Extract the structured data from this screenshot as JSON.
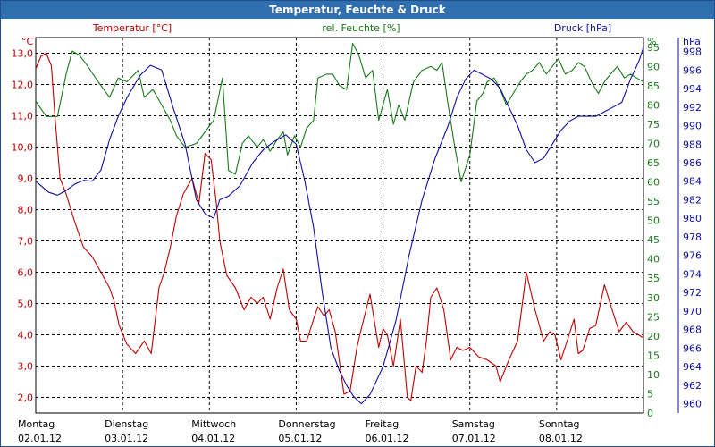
{
  "window": {
    "title": "Temperatur, Feuchte & Druck"
  },
  "colors": {
    "temp": "#c00000",
    "hum": "#1a7a1a",
    "press": "#1010a0",
    "title_bg": "#2f6fb0"
  },
  "chart_data": {
    "type": "line",
    "title": "Temperatur, Feuchte & Druck",
    "x_categories": [
      {
        "day": "Montag",
        "date": "02.01.12"
      },
      {
        "day": "Dienstag",
        "date": "03.01.12"
      },
      {
        "day": "Mittwoch",
        "date": "04.01.12"
      },
      {
        "day": "Donnerstag",
        "date": "05.01.12"
      },
      {
        "day": "Freitag",
        "date": "06.01.12"
      },
      {
        "day": "Samstag",
        "date": "07.01.12"
      },
      {
        "day": "Sonntag",
        "date": "08.01.12"
      }
    ],
    "x_range": [
      0,
      7
    ],
    "grid": true,
    "axes": {
      "temp": {
        "label": "Temperatur [°C]",
        "unit": "°C",
        "min": 1.5,
        "max": 13.5,
        "ticks": [
          "2,0",
          "3,0",
          "4,0",
          "5,0",
          "6,0",
          "7,0",
          "8,0",
          "9,0",
          "10,0",
          "11,0",
          "12,0",
          "13,0"
        ],
        "tick_values": [
          2,
          3,
          4,
          5,
          6,
          7,
          8,
          9,
          10,
          11,
          12,
          13
        ]
      },
      "hum": {
        "label": "rel. Feuchte [%]",
        "unit": "%",
        "min": 0,
        "max": 97.5,
        "ticks": [
          "0",
          "5",
          "10",
          "15",
          "20",
          "25",
          "30",
          "35",
          "40",
          "45",
          "50",
          "55",
          "60",
          "65",
          "70",
          "75",
          "80",
          "85",
          "90",
          "95"
        ],
        "tick_values": [
          0,
          5,
          10,
          15,
          20,
          25,
          30,
          35,
          40,
          45,
          50,
          55,
          60,
          65,
          70,
          75,
          80,
          85,
          90,
          95
        ]
      },
      "press": {
        "label": "Druck [hPa]",
        "unit": "hPa",
        "min": 959,
        "max": 999.5,
        "ticks": [
          "960",
          "962",
          "964",
          "966",
          "968",
          "970",
          "972",
          "974",
          "976",
          "978",
          "980",
          "982",
          "984",
          "986",
          "988",
          "990",
          "992",
          "994",
          "996",
          "998"
        ],
        "tick_values": [
          960,
          962,
          964,
          966,
          968,
          970,
          972,
          974,
          976,
          978,
          980,
          982,
          984,
          986,
          988,
          990,
          992,
          994,
          996,
          998
        ]
      }
    },
    "series": [
      {
        "name": "Temperatur [°C]",
        "axis": "temp",
        "color": "#c00000",
        "x": [
          0,
          0.06,
          0.12,
          0.18,
          0.22,
          0.28,
          0.35,
          0.45,
          0.55,
          0.65,
          0.75,
          0.85,
          0.9,
          0.96,
          1.05,
          1.15,
          1.25,
          1.33,
          1.42,
          1.48,
          1.55,
          1.62,
          1.7,
          1.8,
          1.88,
          1.95,
          2.02,
          2.08,
          2.12,
          2.2,
          2.3,
          2.4,
          2.48,
          2.55,
          2.62,
          2.7,
          2.78,
          2.85,
          2.92,
          3.0,
          3.05,
          3.12,
          3.2,
          3.25,
          3.32,
          3.38,
          3.45,
          3.55,
          3.62,
          3.7,
          3.75,
          3.85,
          3.95,
          4.0,
          4.05,
          4.12,
          4.2,
          4.28,
          4.32,
          4.38,
          4.45,
          4.5,
          4.55,
          4.62,
          4.7,
          4.78,
          4.85,
          4.92,
          5.0,
          5.1,
          5.2,
          5.3,
          5.35,
          5.45,
          5.55,
          5.65,
          5.75,
          5.85,
          5.92,
          5.98,
          6.05,
          6.12,
          6.2,
          6.25,
          6.3,
          6.38,
          6.45,
          6.55,
          6.65,
          6.72,
          6.8,
          6.88,
          6.94,
          7.0
        ],
        "values": [
          12.5,
          12.9,
          13.0,
          12.6,
          11.0,
          9.0,
          8.5,
          7.6,
          6.8,
          6.5,
          6.0,
          5.5,
          5.1,
          4.3,
          3.7,
          3.4,
          3.8,
          3.4,
          5.5,
          6.0,
          6.8,
          7.8,
          8.5,
          9.0,
          8.2,
          9.8,
          9.6,
          8.2,
          7.0,
          5.9,
          5.5,
          4.8,
          5.2,
          5.0,
          5.2,
          4.5,
          5.5,
          6.1,
          4.8,
          4.5,
          3.8,
          3.8,
          4.5,
          4.9,
          4.6,
          4.8,
          4.1,
          2.1,
          2.2,
          3.6,
          4.2,
          5.3,
          3.6,
          4.2,
          4.0,
          3.0,
          4.5,
          2.0,
          1.9,
          3.0,
          2.8,
          3.8,
          5.2,
          5.5,
          4.8,
          3.2,
          3.6,
          3.5,
          3.6,
          3.3,
          3.2,
          3.0,
          2.5,
          3.2,
          3.8,
          6.0,
          4.8,
          3.8,
          4.1,
          4.0,
          3.2,
          3.8,
          4.5,
          3.4,
          3.5,
          4.2,
          4.3,
          5.6,
          4.7,
          4.1,
          4.4,
          4.1,
          4.0,
          3.9
        ]
      },
      {
        "name": "rel. Feuchte [%]",
        "axis": "hum",
        "color": "#1a7a1a",
        "x": [
          0,
          0.12,
          0.25,
          0.35,
          0.42,
          0.5,
          0.6,
          0.72,
          0.85,
          0.95,
          1.05,
          1.18,
          1.25,
          1.35,
          1.45,
          1.55,
          1.62,
          1.72,
          1.85,
          1.95,
          2.05,
          2.15,
          2.22,
          2.3,
          2.38,
          2.45,
          2.55,
          2.62,
          2.7,
          2.78,
          2.85,
          2.9,
          2.98,
          3.05,
          3.12,
          3.2,
          3.25,
          3.35,
          3.42,
          3.5,
          3.58,
          3.65,
          3.72,
          3.8,
          3.88,
          3.95,
          4.05,
          4.12,
          4.18,
          4.25,
          4.35,
          4.45,
          4.55,
          4.62,
          4.68,
          4.75,
          4.82,
          4.9,
          5.0,
          5.08,
          5.15,
          5.2,
          5.28,
          5.35,
          5.42,
          5.5,
          5.58,
          5.65,
          5.72,
          5.8,
          5.88,
          5.95,
          6.02,
          6.1,
          6.18,
          6.25,
          6.32,
          6.4,
          6.48,
          6.55,
          6.62,
          6.7,
          6.78,
          6.85,
          6.92,
          7.0
        ],
        "values": [
          81,
          77,
          77,
          88,
          94,
          93,
          90,
          86,
          82,
          87,
          86,
          89,
          82,
          84,
          80,
          76,
          72,
          69,
          70,
          73,
          76,
          87,
          63,
          62,
          70,
          72,
          69,
          71,
          68,
          71,
          73,
          67,
          72,
          69,
          74,
          76,
          87,
          88,
          88,
          85,
          84,
          96,
          93,
          87,
          89,
          76,
          84,
          75,
          80,
          76,
          86,
          89,
          90,
          89,
          91,
          80,
          70,
          60,
          67,
          81,
          83,
          86,
          87,
          84,
          80,
          83,
          86,
          88,
          89,
          91,
          88,
          90,
          92,
          88,
          89,
          91,
          90,
          86,
          83,
          86,
          88,
          90,
          87,
          88,
          87,
          86
        ]
      },
      {
        "name": "Druck [hPa]",
        "axis": "press",
        "color": "#1010a0",
        "x": [
          0,
          0.15,
          0.25,
          0.35,
          0.45,
          0.55,
          0.65,
          0.75,
          0.85,
          0.95,
          1.05,
          1.2,
          1.32,
          1.45,
          1.58,
          1.72,
          1.85,
          1.95,
          2.05,
          2.12,
          2.22,
          2.35,
          2.5,
          2.62,
          2.75,
          2.88,
          3.0,
          3.1,
          3.2,
          3.3,
          3.4,
          3.5,
          3.58,
          3.66,
          3.75,
          3.85,
          4.0,
          4.15,
          4.3,
          4.45,
          4.6,
          4.75,
          4.85,
          4.95,
          5.05,
          5.15,
          5.25,
          5.35,
          5.45,
          5.55,
          5.65,
          5.75,
          5.85,
          5.95,
          6.05,
          6.15,
          6.25,
          6.35,
          6.45,
          6.55,
          6.65,
          6.75,
          6.85,
          6.95,
          7.0
        ],
        "values": [
          984,
          982.8,
          982.5,
          983,
          983.7,
          984.1,
          984,
          985.2,
          988.5,
          991,
          993,
          995.4,
          996.5,
          996,
          992,
          988,
          982,
          980.5,
          980,
          982,
          982.4,
          983.5,
          986,
          987.4,
          988.3,
          989,
          988,
          984,
          979,
          972,
          966,
          963.5,
          962,
          960.8,
          960,
          961,
          964,
          969,
          976,
          982,
          986.5,
          990,
          993,
          995,
          996,
          995.5,
          995,
          994,
          992,
          990,
          987.4,
          986,
          986.5,
          988,
          989.5,
          990.5,
          991,
          991,
          991,
          991.5,
          992,
          992.5,
          995,
          997,
          998.5
        ]
      }
    ]
  }
}
